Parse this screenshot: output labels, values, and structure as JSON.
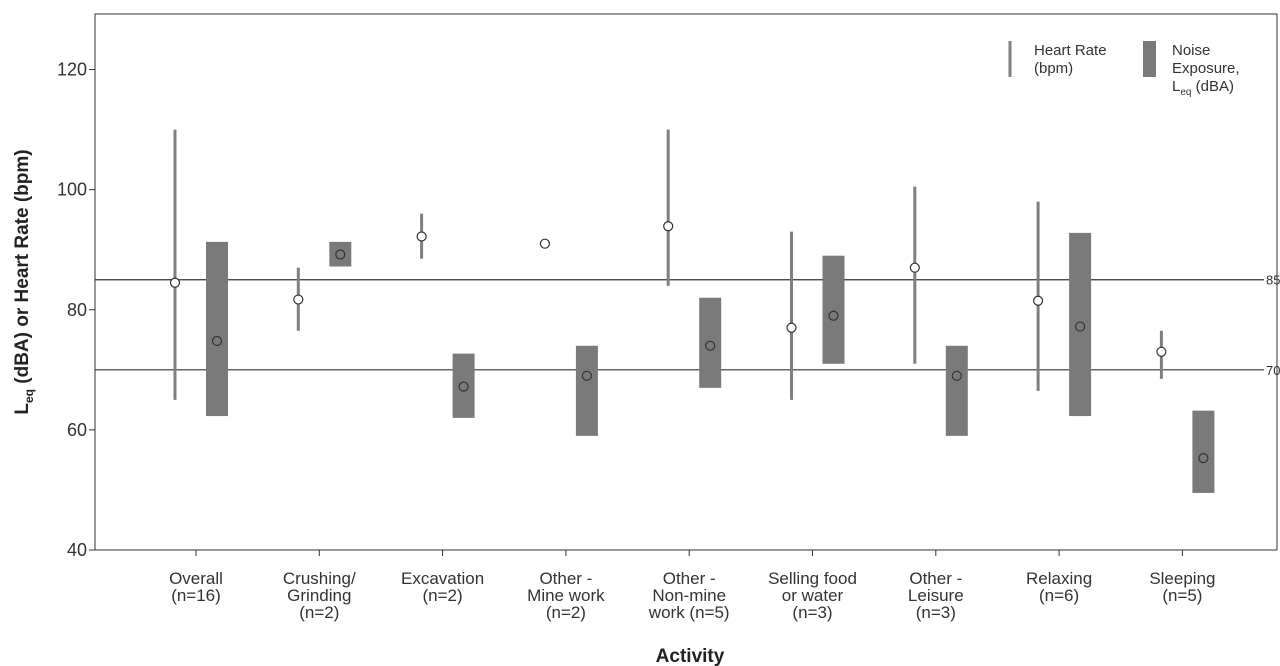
{
  "chart_data": {
    "type": "range",
    "title": "",
    "xlabel": "Activity",
    "ylabel": {
      "main": "L",
      "sub": "eq",
      "rest": " (dBA) or Heart Rate (bpm)"
    },
    "ylim": [
      40,
      130
    ],
    "yticks": [
      40,
      60,
      80,
      100,
      120
    ],
    "categories": [
      [
        "Overall",
        "(n=16)"
      ],
      [
        "Crushing/",
        "Grinding",
        "(n=2)"
      ],
      [
        "Excavation",
        "(n=2)"
      ],
      [
        "Other -",
        "Mine work",
        "(n=2)"
      ],
      [
        "Other -",
        "Non-mine",
        "work (n=5)"
      ],
      [
        "Selling food",
        "or water",
        "(n=3)"
      ],
      [
        "Other -",
        "Leisure",
        "(n=3)"
      ],
      [
        "Relaxing",
        "(n=6)"
      ],
      [
        "Sleeping",
        "(n=5)"
      ]
    ],
    "reference_lines": [
      {
        "value": 85,
        "label": "85"
      },
      {
        "value": 70,
        "label": "70"
      }
    ],
    "series": [
      {
        "name": "Heart Rate (bpm)",
        "mark": "line",
        "values": [
          {
            "low": 65,
            "mean": 84.5,
            "high": 110
          },
          {
            "low": 76.5,
            "mean": 81.7,
            "high": 87
          },
          {
            "low": 88.5,
            "mean": 92.2,
            "high": 96
          },
          {
            "low": 91,
            "mean": 91,
            "high": 91
          },
          {
            "low": 84,
            "mean": 93.9,
            "high": 110
          },
          {
            "low": 65,
            "mean": 77,
            "high": 93
          },
          {
            "low": 71,
            "mean": 87,
            "high": 100.5
          },
          {
            "low": 66.5,
            "mean": 81.5,
            "high": 98
          },
          {
            "low": 68.5,
            "mean": 73,
            "high": 76.5
          }
        ]
      },
      {
        "name": "Noise Exposure, Leq (dBA)",
        "mark": "bar",
        "values": [
          {
            "low": 62.3,
            "mean": 74.8,
            "high": 91.3
          },
          {
            "low": 87.2,
            "mean": 89.2,
            "high": 91.3
          },
          {
            "low": 62,
            "mean": 67.2,
            "high": 72.7
          },
          {
            "low": 59,
            "mean": 69,
            "high": 74
          },
          {
            "low": 67,
            "mean": 74,
            "high": 82
          },
          {
            "low": 71,
            "mean": 79,
            "high": 89
          },
          {
            "low": 59,
            "mean": 69,
            "high": 74
          },
          {
            "low": 62.3,
            "mean": 77.2,
            "high": 92.8
          },
          {
            "low": 49.5,
            "mean": 55.3,
            "high": 63.2
          }
        ]
      }
    ],
    "legend": {
      "position": "top-right",
      "heart_rate": [
        "Heart Rate",
        "(bpm)"
      ],
      "noise": {
        "line1": "Noise",
        "line2": "Exposure,",
        "line3_main": "L",
        "line3_sub": "eq",
        "line3_rest": " (dBA)"
      }
    },
    "colors": {
      "heart_rate": "#7f7f7f",
      "noise": "#7a7a7a",
      "axis": "#333333"
    }
  }
}
